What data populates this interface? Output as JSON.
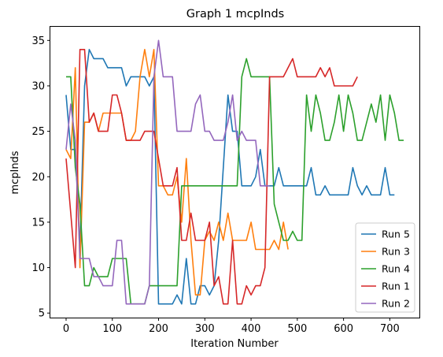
{
  "chart_data": {
    "type": "line",
    "title": "Graph 1 mcpInds",
    "xlabel": "Iteration Number",
    "ylabel": "mcpInds",
    "xlim": [
      -34,
      764
    ],
    "ylim": [
      4.5,
      36.5
    ],
    "xticks": [
      0,
      100,
      200,
      300,
      400,
      500,
      600,
      700
    ],
    "yticks": [
      5,
      10,
      15,
      20,
      25,
      30,
      35
    ],
    "grid": false,
    "legend_position": "lower-right",
    "series": [
      {
        "name": "Run 5",
        "color": "#1f77b4",
        "x": [
          0,
          10,
          20,
          30,
          40,
          50,
          60,
          70,
          80,
          90,
          100,
          110,
          120,
          130,
          140,
          150,
          160,
          170,
          180,
          190,
          200,
          210,
          220,
          230,
          240,
          250,
          260,
          270,
          280,
          290,
          300,
          310,
          320,
          330,
          340,
          350,
          360,
          370,
          380,
          390,
          400,
          410,
          420,
          430,
          440,
          450,
          460,
          470,
          480,
          490,
          500,
          510,
          520,
          530,
          540,
          550,
          560,
          570,
          580,
          590,
          600,
          610,
          620,
          630,
          640,
          650,
          660,
          670,
          680,
          690,
          700,
          710
        ],
        "y": [
          29,
          23,
          23,
          12,
          30,
          34,
          33,
          33,
          33,
          32,
          32,
          32,
          32,
          30,
          31,
          31,
          31,
          31,
          30,
          31,
          6,
          6,
          6,
          6,
          7,
          6,
          11,
          6,
          6,
          8,
          8,
          7,
          8,
          13,
          21,
          29,
          25,
          25,
          19,
          19,
          19,
          20,
          23,
          19,
          19,
          19,
          21,
          19,
          19,
          19,
          19,
          19,
          19,
          21,
          18,
          18,
          19,
          18,
          18,
          18,
          18,
          18,
          21,
          19,
          18,
          19,
          18,
          18,
          18,
          21,
          18,
          18
        ]
      },
      {
        "name": "Run 3",
        "color": "#ff7f0e",
        "x": [
          0,
          10,
          20,
          30,
          40,
          50,
          60,
          70,
          80,
          90,
          100,
          110,
          120,
          130,
          140,
          150,
          160,
          170,
          180,
          190,
          200,
          210,
          220,
          230,
          240,
          250,
          260,
          270,
          280,
          290,
          300,
          310,
          320,
          330,
          340,
          350,
          360,
          370,
          380,
          390,
          400,
          410,
          420,
          430,
          440,
          450,
          460,
          470,
          480
        ],
        "y": [
          23,
          22,
          32,
          10,
          26,
          26,
          27,
          25,
          27,
          27,
          27,
          27,
          27,
          24,
          24,
          25,
          31,
          34,
          31,
          34,
          19,
          19,
          18,
          18,
          20,
          15,
          22,
          13,
          7,
          7,
          13,
          14,
          13,
          15,
          13,
          16,
          13,
          13,
          13,
          13,
          15,
          12,
          12,
          12,
          12,
          13,
          12,
          15,
          12
        ]
      },
      {
        "name": "Run 4",
        "color": "#2ca02c",
        "x": [
          0,
          10,
          20,
          30,
          40,
          50,
          60,
          70,
          80,
          90,
          100,
          110,
          120,
          130,
          140,
          150,
          160,
          170,
          180,
          190,
          200,
          210,
          220,
          230,
          240,
          250,
          260,
          270,
          280,
          290,
          300,
          310,
          320,
          330,
          340,
          350,
          360,
          370,
          380,
          390,
          400,
          410,
          420,
          430,
          440,
          450,
          460,
          470,
          480,
          490,
          500,
          510,
          520,
          530,
          540,
          550,
          560,
          570,
          580,
          590,
          600,
          610,
          620,
          630,
          640,
          650,
          660,
          670,
          680,
          690,
          700,
          710,
          720,
          730
        ],
        "y": [
          31,
          31,
          21,
          17,
          8,
          8,
          10,
          9,
          9,
          9,
          11,
          11,
          11,
          11,
          6,
          6,
          6,
          6,
          8,
          8,
          8,
          8,
          8,
          8,
          8,
          19,
          19,
          19,
          19,
          19,
          19,
          19,
          19,
          19,
          19,
          19,
          19,
          19,
          31,
          33,
          31,
          31,
          31,
          31,
          31,
          17,
          15,
          13,
          13,
          14,
          13,
          13,
          29,
          25,
          29,
          27,
          24,
          24,
          26,
          29,
          25,
          29,
          27,
          24,
          24,
          26,
          28,
          26,
          29,
          24,
          29,
          27,
          24,
          24
        ]
      },
      {
        "name": "Run 1",
        "color": "#d62728",
        "x": [
          0,
          10,
          20,
          30,
          40,
          50,
          60,
          70,
          80,
          90,
          100,
          110,
          120,
          130,
          140,
          150,
          160,
          170,
          180,
          190,
          200,
          210,
          220,
          230,
          240,
          250,
          260,
          270,
          280,
          290,
          300,
          310,
          320,
          330,
          340,
          350,
          360,
          370,
          380,
          390,
          400,
          410,
          420,
          430,
          440,
          450,
          460,
          470,
          480,
          490,
          500,
          510,
          520,
          530,
          540,
          550,
          560,
          570,
          580,
          590,
          600,
          610,
          620,
          630
        ],
        "y": [
          22,
          16,
          10,
          34,
          34,
          26,
          27,
          25,
          25,
          25,
          29,
          29,
          27,
          24,
          24,
          24,
          24,
          25,
          25,
          25,
          22,
          19,
          19,
          19,
          21,
          13,
          13,
          16,
          13,
          13,
          13,
          15,
          8,
          9,
          6,
          6,
          13,
          6,
          6,
          8,
          7,
          8,
          8,
          10,
          31,
          31,
          31,
          31,
          32,
          33,
          31,
          31,
          31,
          31,
          31,
          32,
          31,
          32,
          30,
          30,
          30,
          30,
          30,
          31
        ]
      },
      {
        "name": "Run 2",
        "color": "#9467bd",
        "x": [
          0,
          10,
          20,
          30,
          40,
          50,
          60,
          70,
          80,
          90,
          100,
          110,
          120,
          130,
          140,
          150,
          160,
          170,
          180,
          190,
          200,
          210,
          220,
          230,
          240,
          250,
          260,
          270,
          280,
          290,
          300,
          310,
          320,
          330,
          340,
          350,
          360,
          370,
          380,
          390,
          400,
          410,
          420,
          430,
          440
        ],
        "y": [
          23,
          28,
          24,
          11,
          11,
          11,
          9,
          9,
          8,
          8,
          8,
          13,
          13,
          6,
          6,
          6,
          6,
          6,
          8,
          31,
          35,
          31,
          31,
          31,
          25,
          25,
          25,
          25,
          28,
          29,
          25,
          25,
          24,
          24,
          24,
          26,
          29,
          24,
          25,
          24,
          24,
          24,
          19,
          19,
          19
        ]
      }
    ]
  }
}
